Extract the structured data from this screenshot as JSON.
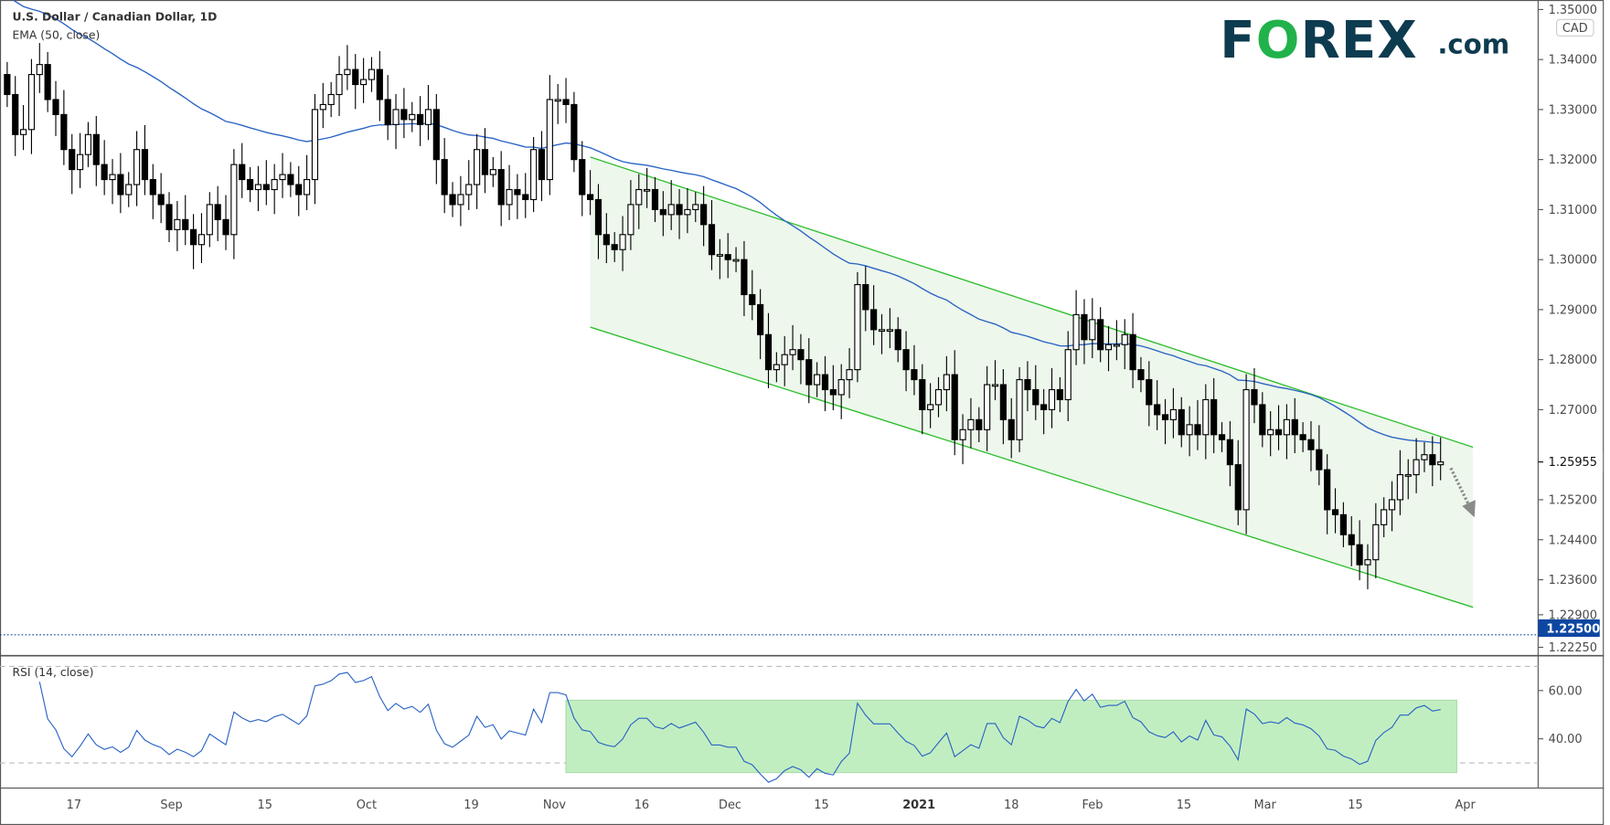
{
  "chart_data": {
    "type": "candlestick",
    "title": "U.S. Dollar / Canadian Dollar, 1D",
    "indicator_label": "EMA (50, close)",
    "currency_badge": "CAD",
    "price_ticks": [
      "1.35000",
      "1.34000",
      "1.33000",
      "1.32000",
      "1.31000",
      "1.30000",
      "1.29000",
      "1.28000",
      "1.27000",
      "1.25200",
      "1.24400",
      "1.23600",
      "1.22900",
      "1.22250"
    ],
    "last_price_label": "1.25955",
    "last_price": 1.25955,
    "level_label": "1.22500",
    "level": 1.225,
    "ylim": [
      1.2205,
      1.3525
    ],
    "close": [
      1.333,
      1.325,
      1.326,
      1.337,
      1.339,
      1.332,
      1.329,
      1.322,
      1.318,
      1.321,
      1.325,
      1.319,
      1.316,
      1.317,
      1.313,
      1.315,
      1.322,
      1.316,
      1.313,
      1.311,
      1.306,
      1.308,
      1.306,
      1.303,
      1.305,
      1.311,
      1.308,
      1.305,
      1.319,
      1.316,
      1.314,
      1.315,
      1.314,
      1.316,
      1.317,
      1.315,
      1.313,
      1.316,
      1.33,
      1.331,
      1.333,
      1.337,
      1.338,
      1.335,
      1.336,
      1.338,
      1.332,
      1.327,
      1.33,
      1.328,
      1.329,
      1.327,
      1.33,
      1.32,
      1.313,
      1.311,
      1.313,
      1.315,
      1.322,
      1.317,
      1.318,
      1.311,
      1.314,
      1.313,
      1.312,
      1.322,
      1.316,
      1.332,
      1.332,
      1.331,
      1.32,
      1.313,
      1.312,
      1.305,
      1.303,
      1.302,
      1.305,
      1.311,
      1.314,
      1.314,
      1.31,
      1.309,
      1.311,
      1.309,
      1.31,
      1.311,
      1.307,
      1.301,
      1.301,
      1.3,
      1.3,
      1.293,
      1.291,
      1.285,
      1.278,
      1.279,
      1.281,
      1.282,
      1.28,
      1.275,
      1.277,
      1.274,
      1.273,
      1.276,
      1.278,
      1.295,
      1.29,
      1.286,
      1.286,
      1.286,
      1.282,
      1.278,
      1.276,
      1.27,
      1.271,
      1.274,
      1.277,
      1.264,
      1.266,
      1.268,
      1.266,
      1.275,
      1.275,
      1.268,
      1.264,
      1.276,
      1.274,
      1.271,
      1.27,
      1.274,
      1.272,
      1.282,
      1.289,
      1.284,
      1.288,
      1.282,
      1.283,
      1.283,
      1.285,
      1.278,
      1.276,
      1.271,
      1.269,
      1.268,
      1.27,
      1.265,
      1.267,
      1.265,
      1.272,
      1.265,
      1.264,
      1.259,
      1.25,
      1.274,
      1.271,
      1.265,
      1.266,
      1.265,
      1.268,
      1.265,
      1.264,
      1.262,
      1.258,
      1.25,
      1.249,
      1.245,
      1.243,
      1.239,
      1.24,
      1.247,
      1.25,
      1.252,
      1.257,
      1.257,
      1.26,
      1.261,
      1.259,
      1.25955
    ],
    "ema_period": 50,
    "channel": {
      "start_bar": 72,
      "end_bar": 181,
      "upper": [
        1.3205,
        1.2625
      ],
      "lower": [
        1.2865,
        1.2305
      ],
      "fill": "#edf7ec",
      "line": "#2fbf2f"
    },
    "rsi": {
      "label": "RSI (14, close)",
      "period": 14,
      "ticks": [
        "60.00",
        "40.00"
      ],
      "bands": [
        70,
        30
      ],
      "box": {
        "start_bar": 69,
        "end_bar": 179,
        "top": 56,
        "bottom": 26,
        "fill": "#c1eec1"
      }
    },
    "x_labels": [
      "17",
      "Sep",
      "15",
      "Oct",
      "19",
      "Nov",
      "16",
      "Dec",
      "15",
      "2021",
      "18",
      "Feb",
      "15",
      "Mar",
      "15",
      "Apr"
    ],
    "colors": {
      "ema": "#2962c4",
      "up_fill": "#ffffff",
      "down_fill": "#000000",
      "level_badge": "#0d47a1",
      "arrow": "#8a8a8a"
    },
    "forecast_arrow": "down"
  },
  "logo": {
    "brand": "FOREX",
    "suffix": ".com"
  }
}
